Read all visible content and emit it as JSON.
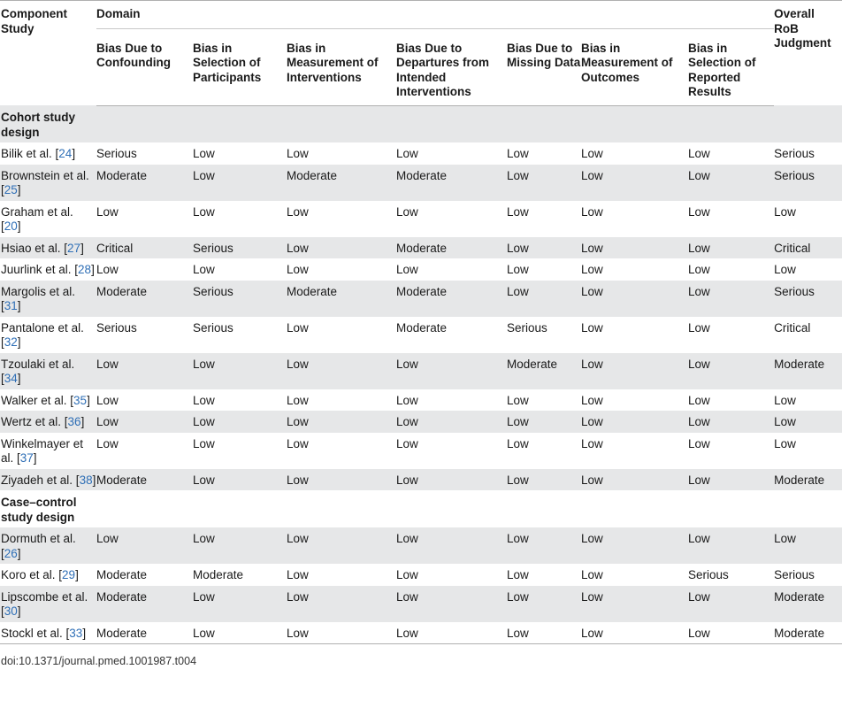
{
  "header": {
    "component_study": "Component Study",
    "domain": "Domain",
    "overall": "Overall RoB Judgment",
    "columns": [
      "Bias Due to Confounding",
      "Bias in Selection of Participants",
      "Bias in Measurement of Interventions",
      "Bias Due to Departures from Intended Interventions",
      "Bias Due to Missing Data",
      "Bias in Measurement of Outcomes",
      "Bias in Selection of Reported Results"
    ]
  },
  "sections": [
    {
      "title": "Cohort study design",
      "rows": [
        {
          "author": "Bilik et al. [",
          "ref": "24",
          "close": "]",
          "cells": [
            "Serious",
            "Low",
            "Low",
            "Low",
            "Low",
            "Low",
            "Low",
            "Serious"
          ]
        },
        {
          "author": "Brownstein et al. [",
          "ref": "25",
          "close": "]",
          "cells": [
            "Moderate",
            "Low",
            "Moderate",
            "Moderate",
            "Low",
            "Low",
            "Low",
            "Serious"
          ]
        },
        {
          "author": "Graham et al. [",
          "ref": "20",
          "close": "]",
          "cells": [
            "Low",
            "Low",
            "Low",
            "Low",
            "Low",
            "Low",
            "Low",
            "Low"
          ]
        },
        {
          "author": "Hsiao et al. [",
          "ref": "27",
          "close": "]",
          "cells": [
            "Critical",
            "Serious",
            "Low",
            "Moderate",
            "Low",
            "Low",
            "Low",
            "Critical"
          ]
        },
        {
          "author": "Juurlink et al. [",
          "ref": "28",
          "close": "]",
          "cells": [
            "Low",
            "Low",
            "Low",
            "Low",
            "Low",
            "Low",
            "Low",
            "Low"
          ]
        },
        {
          "author": "Margolis et al. [",
          "ref": "31",
          "close": "]",
          "cells": [
            "Moderate",
            "Serious",
            "Moderate",
            "Moderate",
            "Low",
            "Low",
            "Low",
            "Serious"
          ]
        },
        {
          "author": "Pantalone et al. [",
          "ref": "32",
          "close": "]",
          "cells": [
            "Serious",
            "Serious",
            "Low",
            "Moderate",
            "Serious",
            "Low",
            "Low",
            "Critical"
          ]
        },
        {
          "author": "Tzoulaki et al. [",
          "ref": "34",
          "close": "]",
          "cells": [
            "Low",
            "Low",
            "Low",
            "Low",
            "Moderate",
            "Low",
            "Low",
            "Moderate"
          ]
        },
        {
          "author": "Walker et al. [",
          "ref": "35",
          "close": "]",
          "cells": [
            "Low",
            "Low",
            "Low",
            "Low",
            "Low",
            "Low",
            "Low",
            "Low"
          ]
        },
        {
          "author": "Wertz et al. [",
          "ref": "36",
          "close": "]",
          "cells": [
            "Low",
            "Low",
            "Low",
            "Low",
            "Low",
            "Low",
            "Low",
            "Low"
          ]
        },
        {
          "author": "Winkelmayer et al. [",
          "ref": "37",
          "close": "]",
          "cells": [
            "Low",
            "Low",
            "Low",
            "Low",
            "Low",
            "Low",
            "Low",
            "Low"
          ]
        },
        {
          "author": "Ziyadeh et al. [",
          "ref": "38",
          "close": "]",
          "cells": [
            "Moderate",
            "Low",
            "Low",
            "Low",
            "Low",
            "Low",
            "Low",
            "Moderate"
          ]
        }
      ]
    },
    {
      "title": "Case–control study design",
      "rows": [
        {
          "author": "Dormuth et al. [",
          "ref": "26",
          "close": "]",
          "cells": [
            "Low",
            "Low",
            "Low",
            "Low",
            "Low",
            "Low",
            "Low",
            "Low"
          ]
        },
        {
          "author": "Koro et al. [",
          "ref": "29",
          "close": "]",
          "cells": [
            "Moderate",
            "Moderate",
            "Low",
            "Low",
            "Low",
            "Low",
            "Serious",
            "Serious"
          ]
        },
        {
          "author": "Lipscombe et al. [",
          "ref": "30",
          "close": "]",
          "cells": [
            "Moderate",
            "Low",
            "Low",
            "Low",
            "Low",
            "Low",
            "Low",
            "Moderate"
          ]
        },
        {
          "author": "Stockl et al. [",
          "ref": "33",
          "close": "]",
          "cells": [
            "Moderate",
            "Low",
            "Low",
            "Low",
            "Low",
            "Low",
            "Low",
            "Moderate"
          ]
        }
      ]
    }
  ],
  "footer": {
    "doi": "doi:10.1371/journal.pmed.1001987.t004"
  },
  "colors": {
    "row_shade": "#e6e7e8",
    "ref_link": "#2f6fb6"
  }
}
